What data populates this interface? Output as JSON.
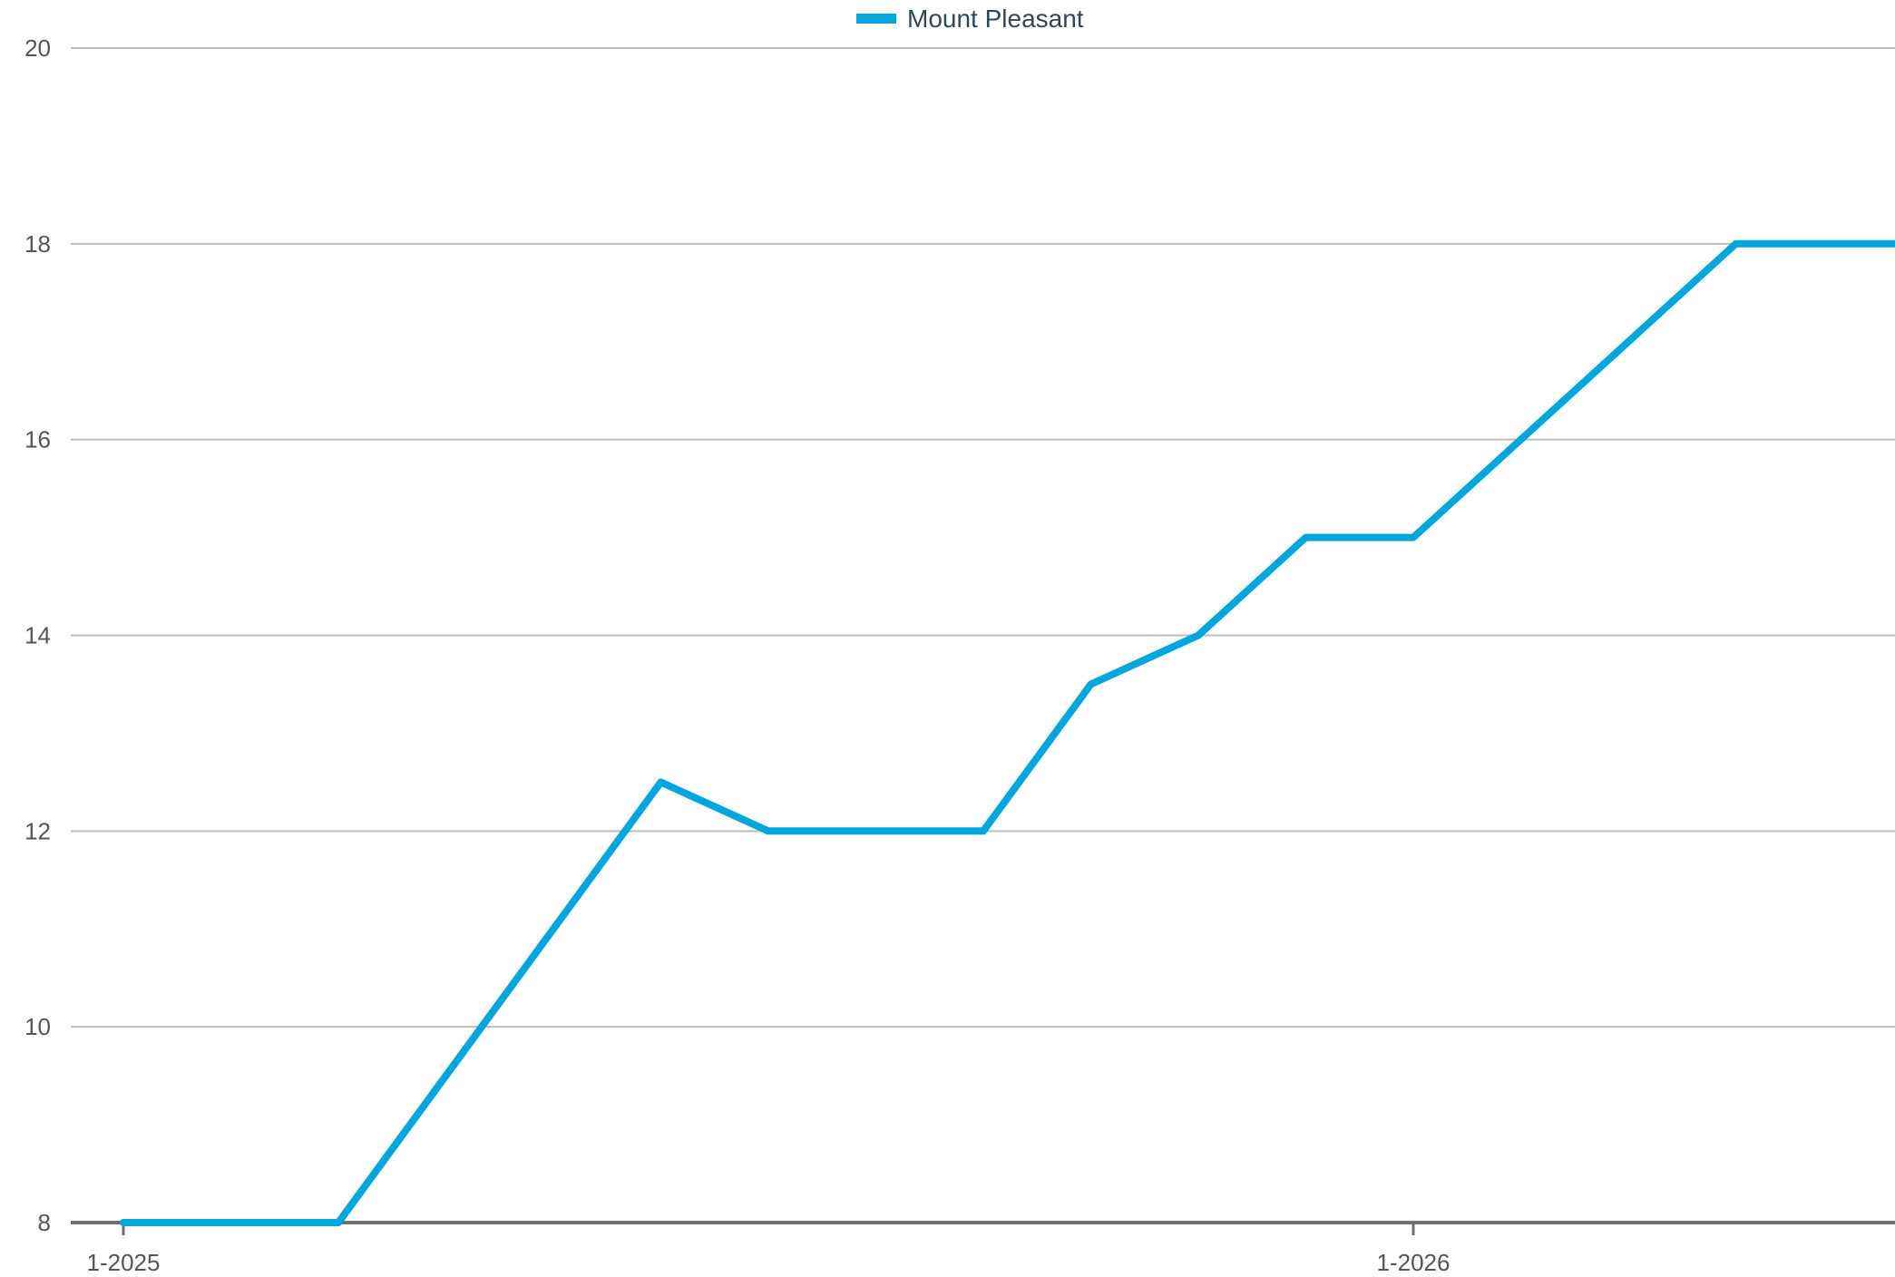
{
  "chart_data": {
    "type": "line",
    "title": "",
    "xlabel": "",
    "ylabel": "",
    "x": [
      "2025-01",
      "2025-02",
      "2025-03",
      "2025-04",
      "2025-05",
      "2025-06",
      "2025-07",
      "2025-08",
      "2025-09",
      "2025-10",
      "2025-11",
      "2025-12",
      "2026-01",
      "2026-02",
      "2026-03",
      "2026-04",
      "2026-05",
      "2026-06",
      "2026-07"
    ],
    "xlim": [
      "2025-01",
      "2026-07"
    ],
    "x_ticks": [
      {
        "x": "2025-01",
        "label": "1-2025"
      },
      {
        "x": "2026-01",
        "label": "1-2026"
      }
    ],
    "ylim": [
      8,
      20
    ],
    "y_ticks": [
      8,
      10,
      12,
      14,
      16,
      18,
      20
    ],
    "grid": "horizontal",
    "legend": "top-center",
    "series": [
      {
        "name": "Mount Pleasant",
        "color": "#00a6dc",
        "values": [
          8,
          8,
          8,
          9.5,
          11,
          12.5,
          12,
          12,
          12,
          13.5,
          14,
          15,
          15,
          16,
          17,
          18,
          18,
          18,
          18
        ]
      }
    ],
    "colors": {
      "grid": "#bdbdbd",
      "axis": "#707070",
      "tick_text": "#555555",
      "legend_text": "#2f4858"
    }
  }
}
